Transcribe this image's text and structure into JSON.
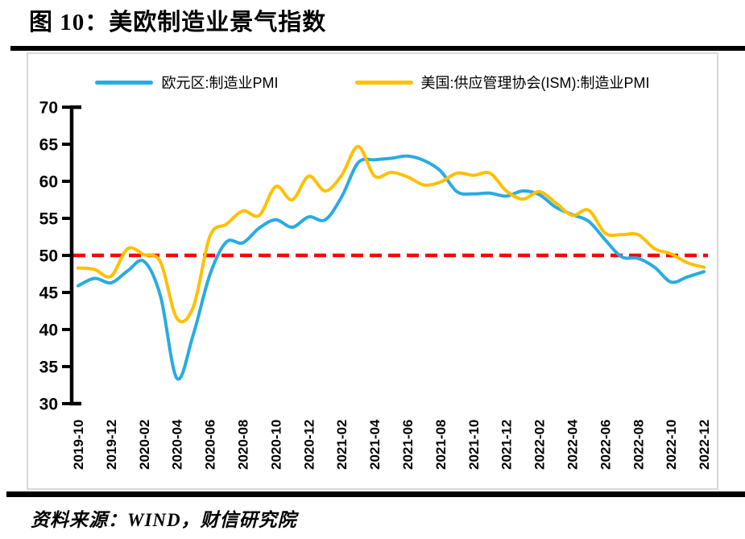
{
  "header": {
    "title": "图 10：美欧制造业景气指数"
  },
  "footer": {
    "source": "资料来源：WIND，财信研究院"
  },
  "chart_data": {
    "type": "line",
    "title": "图 10：美欧制造业景气指数",
    "xlabel": "",
    "ylabel": "",
    "ylim": [
      30,
      70
    ],
    "y_ticks": [
      30,
      35,
      40,
      45,
      50,
      55,
      60,
      65,
      70
    ],
    "x_tick_every": 2,
    "grid": false,
    "legend_position": "top",
    "smoothed": true,
    "reference_line": {
      "value": 50,
      "color": "#FF0000",
      "style": "dashed"
    },
    "x": [
      "2019-10",
      "2019-11",
      "2019-12",
      "2020-01",
      "2020-02",
      "2020-03",
      "2020-04",
      "2020-05",
      "2020-06",
      "2020-07",
      "2020-08",
      "2020-09",
      "2020-10",
      "2020-11",
      "2020-12",
      "2021-01",
      "2021-02",
      "2021-03",
      "2021-04",
      "2021-05",
      "2021-06",
      "2021-07",
      "2021-08",
      "2021-09",
      "2021-10",
      "2021-11",
      "2021-12",
      "2022-01",
      "2022-02",
      "2022-03",
      "2022-04",
      "2022-05",
      "2022-06",
      "2022-07",
      "2022-08",
      "2022-09",
      "2022-10",
      "2022-11",
      "2022-12"
    ],
    "series": [
      {
        "key": "eurozone-pmi",
        "name": "欧元区:制造业PMI",
        "color": "#29ABE2",
        "values": [
          45.9,
          46.9,
          46.3,
          47.9,
          49.2,
          44.5,
          33.4,
          39.4,
          47.4,
          51.8,
          51.7,
          53.7,
          54.8,
          53.8,
          55.2,
          54.8,
          57.9,
          62.5,
          62.9,
          63.1,
          63.4,
          62.8,
          61.4,
          58.6,
          58.3,
          58.4,
          58.0,
          58.7,
          58.2,
          56.5,
          55.5,
          54.6,
          52.1,
          49.8,
          49.6,
          48.4,
          46.4,
          47.1,
          47.8
        ]
      },
      {
        "key": "us-ism-pmi",
        "name": "美国:供应管理协会(ISM):制造业PMI",
        "color": "#FFC000",
        "values": [
          48.3,
          48.1,
          47.2,
          50.9,
          50.1,
          49.1,
          41.5,
          43.1,
          52.6,
          54.2,
          56.0,
          55.4,
          59.3,
          57.5,
          60.7,
          58.7,
          60.8,
          64.7,
          60.7,
          61.2,
          60.6,
          59.5,
          59.9,
          61.1,
          60.8,
          61.1,
          58.7,
          57.6,
          58.6,
          57.1,
          55.4,
          56.1,
          53.0,
          52.8,
          52.8,
          50.9,
          50.2,
          49.0,
          48.4
        ]
      }
    ]
  }
}
